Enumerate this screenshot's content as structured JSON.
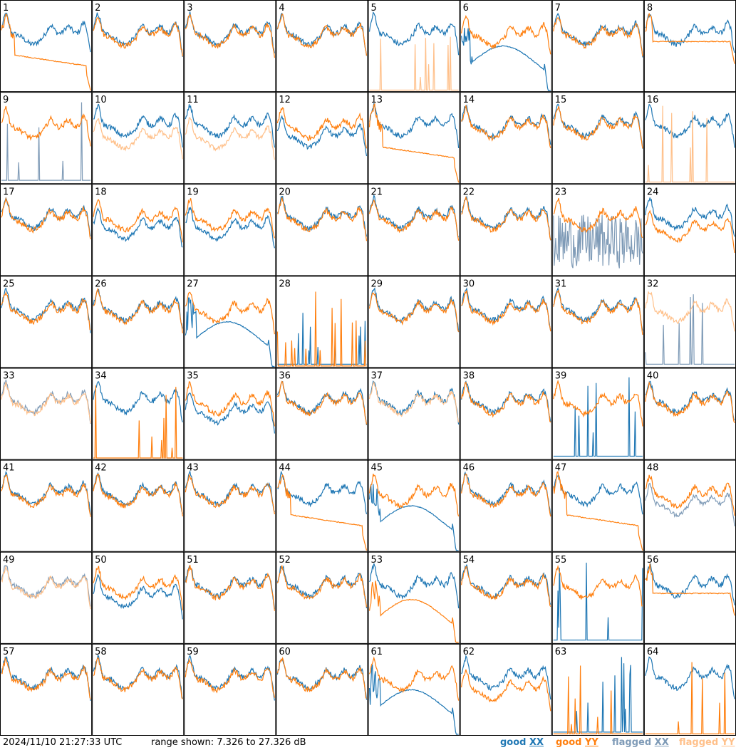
{
  "footer": {
    "timestamp": "2024/11/10 21:27:33 UTC",
    "range_text": "range shown: 7.326 to 27.326 dB"
  },
  "legend": [
    {
      "id": "good-xx",
      "prefix": "good ",
      "pol": "XX",
      "color": "#1f77b4"
    },
    {
      "id": "good-yy",
      "prefix": "good ",
      "pol": "YY",
      "color": "#ff7f0e"
    },
    {
      "id": "flag-xx",
      "prefix": "flagged ",
      "pol": "XX",
      "color": "#7f9bb7"
    },
    {
      "id": "flag-yy",
      "prefix": "flagged ",
      "pol": "YY",
      "color": "#ffc08a"
    }
  ],
  "colors": {
    "good_xx": "#1f77b4",
    "good_yy": "#ff7f0e",
    "flagged_xx": "#7f9bb7",
    "flagged_yy": "#ffc08a",
    "border": "#000000"
  },
  "chart_data": {
    "type": "line",
    "grid": "8x8 small-multiple panels",
    "ylim_db": [
      7.326,
      27.326
    ],
    "series_per_panel": [
      "XX",
      "YY"
    ],
    "panels": [
      {
        "n": 1,
        "xx": "normal",
        "yy": "droop"
      },
      {
        "n": 2,
        "xx": "normal",
        "yy": "normal"
      },
      {
        "n": 3,
        "xx": "normal",
        "yy": "normal"
      },
      {
        "n": 4,
        "xx": "normal",
        "yy": "normal"
      },
      {
        "n": 5,
        "xx": "normal",
        "yy": "spikes",
        "yy_flagged": true
      },
      {
        "n": 6,
        "xx": "dip",
        "yy": "normal"
      },
      {
        "n": 7,
        "xx": "normal",
        "yy": "normal"
      },
      {
        "n": 8,
        "xx": "normal",
        "yy": "flat"
      },
      {
        "n": 9,
        "xx": "spikes",
        "xx_flagged": true,
        "yy": "normal"
      },
      {
        "n": 10,
        "xx": "normal",
        "yy": "low",
        "yy_flagged": true
      },
      {
        "n": 11,
        "xx": "normal",
        "yy": "low",
        "yy_flagged": true
      },
      {
        "n": 12,
        "xx": "low",
        "yy": "normal"
      },
      {
        "n": 13,
        "xx": "normal",
        "yy": "droop"
      },
      {
        "n": 14,
        "xx": "normal",
        "yy": "normal"
      },
      {
        "n": 15,
        "xx": "normal",
        "yy": "normal"
      },
      {
        "n": 16,
        "xx": "normal",
        "yy": "spikes",
        "yy_flagged": true
      },
      {
        "n": 17,
        "xx": "normal",
        "yy": "normal"
      },
      {
        "n": 18,
        "xx": "low",
        "yy": "normal"
      },
      {
        "n": 19,
        "xx": "low",
        "yy": "normal"
      },
      {
        "n": 20,
        "xx": "normal",
        "yy": "normal"
      },
      {
        "n": 21,
        "xx": "normal",
        "yy": "normal"
      },
      {
        "n": 22,
        "xx": "normal",
        "yy": "normal"
      },
      {
        "n": 23,
        "xx": "noisy",
        "xx_flagged": true,
        "yy": "normal"
      },
      {
        "n": 24,
        "xx": "normal",
        "yy": "low"
      },
      {
        "n": 25,
        "xx": "normal",
        "yy": "normal"
      },
      {
        "n": 26,
        "xx": "normal",
        "yy": "normal"
      },
      {
        "n": 27,
        "xx": "dip",
        "yy": "normal"
      },
      {
        "n": 28,
        "xx": "spikes",
        "yy": "spikes"
      },
      {
        "n": 29,
        "xx": "normal",
        "yy": "normal"
      },
      {
        "n": 30,
        "xx": "normal",
        "yy": "normal"
      },
      {
        "n": 31,
        "xx": "normal",
        "yy": "normal"
      },
      {
        "n": 32,
        "xx": "spikes",
        "xx_flagged": true,
        "yy": "normal",
        "yy_flagged": true
      },
      {
        "n": 33,
        "xx": "normal",
        "xx_flagged": true,
        "yy": "normal",
        "yy_flagged": true
      },
      {
        "n": 34,
        "xx": "normal",
        "yy": "spikes"
      },
      {
        "n": 35,
        "xx": "low",
        "yy": "normal"
      },
      {
        "n": 36,
        "xx": "normal",
        "yy": "normal"
      },
      {
        "n": 37,
        "xx": "normal",
        "yy": "normal",
        "yy_flagged": true
      },
      {
        "n": 38,
        "xx": "normal",
        "yy": "normal"
      },
      {
        "n": 39,
        "xx": "spikes",
        "yy": "normal"
      },
      {
        "n": 40,
        "xx": "normal",
        "yy": "normal"
      },
      {
        "n": 41,
        "xx": "normal",
        "yy": "normal"
      },
      {
        "n": 42,
        "xx": "normal",
        "yy": "normal"
      },
      {
        "n": 43,
        "xx": "normal",
        "yy": "normal"
      },
      {
        "n": 44,
        "xx": "normal",
        "yy": "droop"
      },
      {
        "n": 45,
        "xx": "dip",
        "yy": "normal"
      },
      {
        "n": 46,
        "xx": "normal",
        "yy": "normal"
      },
      {
        "n": 47,
        "xx": "normal",
        "yy": "droop"
      },
      {
        "n": 48,
        "xx": "low",
        "xx_flagged": true,
        "yy": "normal"
      },
      {
        "n": 49,
        "xx": "normal",
        "xx_flagged": true,
        "yy": "normal",
        "yy_flagged": true
      },
      {
        "n": 50,
        "xx": "low",
        "yy": "normal"
      },
      {
        "n": 51,
        "xx": "normal",
        "yy": "normal"
      },
      {
        "n": 52,
        "xx": "normal",
        "yy": "normal"
      },
      {
        "n": 53,
        "xx": "normal",
        "yy": "dip"
      },
      {
        "n": 54,
        "xx": "normal",
        "yy": "normal"
      },
      {
        "n": 55,
        "xx": "spikes",
        "yy": "normal"
      },
      {
        "n": 56,
        "xx": "normal",
        "yy": "flat"
      },
      {
        "n": 57,
        "xx": "normal",
        "yy": "normal"
      },
      {
        "n": 58,
        "xx": "normal",
        "yy": "normal"
      },
      {
        "n": 59,
        "xx": "normal",
        "yy": "normal"
      },
      {
        "n": 60,
        "xx": "normal",
        "yy": "normal"
      },
      {
        "n": 61,
        "xx": "dip",
        "yy": "normal"
      },
      {
        "n": 62,
        "xx": "normal",
        "yy": "low"
      },
      {
        "n": 63,
        "xx": "spikes",
        "yy": "spikes"
      },
      {
        "n": 64,
        "xx": "normal",
        "yy": "spikes"
      }
    ]
  }
}
